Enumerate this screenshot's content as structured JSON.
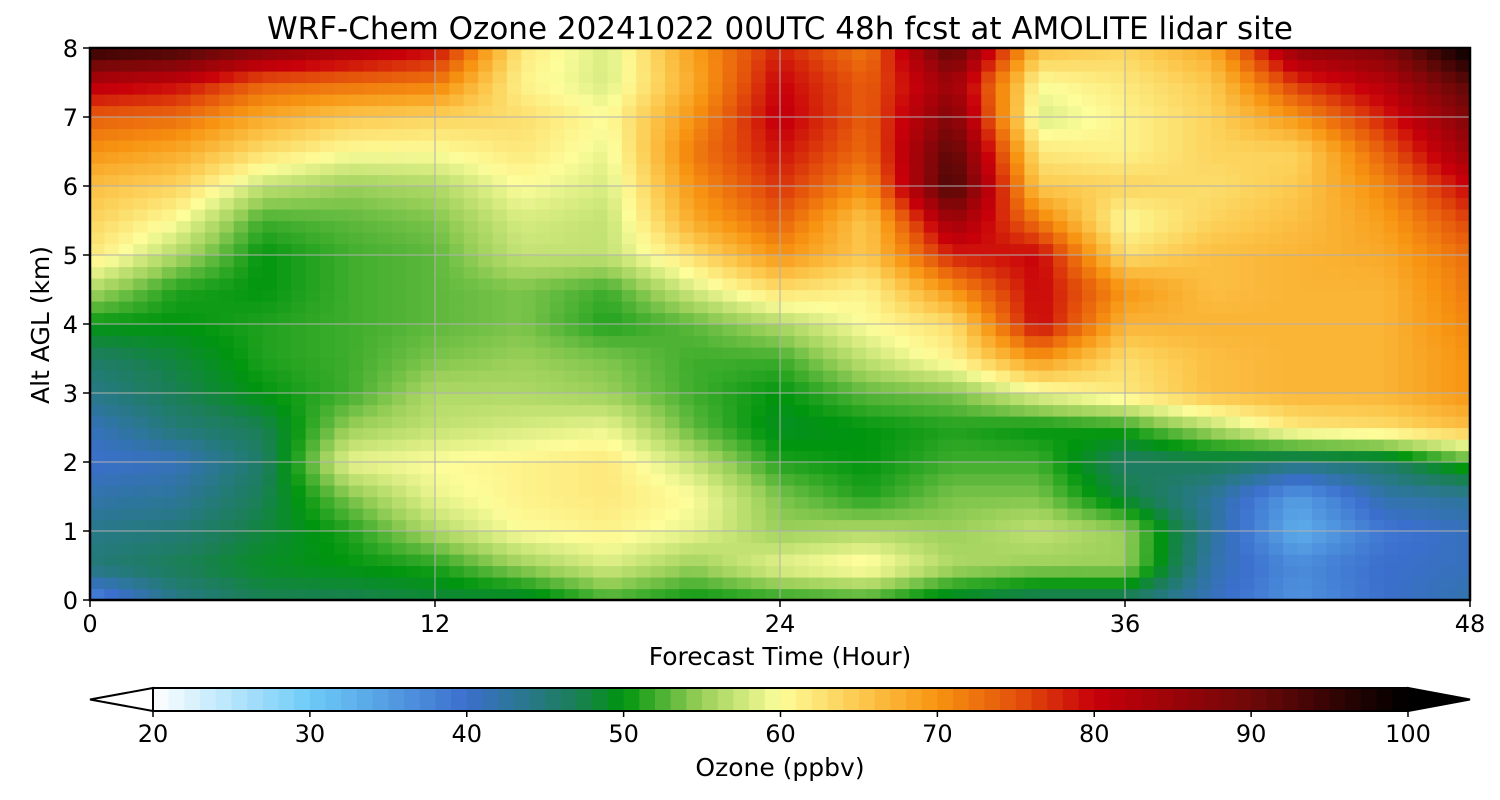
{
  "chart_data": {
    "type": "heatmap",
    "title": "WRF-Chem Ozone  20241022 00UTC 48h fcst at AMOLITE lidar site",
    "xlabel": "Forecast Time (Hour)",
    "ylabel": "Alt AGL (km)",
    "xlim": [
      0,
      48
    ],
    "ylim": [
      0,
      8
    ],
    "x_ticks": [
      "0",
      "12",
      "24",
      "36",
      "48"
    ],
    "y_ticks": [
      "0",
      "1",
      "2",
      "3",
      "4",
      "5",
      "6",
      "7",
      "8"
    ],
    "grid": true,
    "x": [
      0,
      3,
      6,
      9,
      12,
      15,
      18,
      21,
      24,
      27,
      30,
      33,
      36,
      39,
      42,
      45,
      48
    ],
    "y": [
      0,
      0.5,
      1,
      1.5,
      2,
      2.5,
      3,
      3.5,
      4,
      4.5,
      5,
      5.5,
      6,
      6.5,
      7,
      7.5,
      8
    ],
    "z_ppbv": [
      [
        37,
        44,
        47,
        47,
        48,
        48,
        52,
        50,
        51,
        52,
        48,
        46,
        46,
        41,
        36,
        40,
        42
      ],
      [
        45,
        47,
        49,
        50,
        51,
        55,
        58,
        55,
        59,
        61,
        56,
        55,
        55,
        42,
        37,
        40,
        41
      ],
      [
        44,
        45,
        48,
        51,
        56,
        60,
        61,
        59,
        55,
        56,
        55,
        57,
        55,
        43,
        33,
        39,
        41
      ],
      [
        42,
        43,
        47,
        54,
        59,
        61,
        62,
        60,
        54,
        51,
        54,
        54,
        48,
        43,
        35,
        42,
        43
      ],
      [
        40,
        41,
        46,
        59,
        60,
        61,
        62,
        57,
        51,
        50,
        52,
        52,
        46,
        47,
        45,
        46,
        52
      ],
      [
        41,
        45,
        47,
        55,
        57,
        58,
        59,
        53,
        49,
        50,
        51,
        50,
        51,
        56,
        62,
        63,
        66
      ],
      [
        44,
        47,
        50,
        52,
        56,
        56,
        55,
        52,
        50,
        53,
        54,
        59,
        62,
        66,
        67,
        67,
        70
      ],
      [
        46,
        48,
        51,
        52,
        54,
        55,
        54,
        52,
        52,
        57,
        61,
        70,
        63,
        66,
        67,
        67,
        70
      ],
      [
        50,
        50,
        51,
        52,
        53,
        54,
        51,
        53,
        56,
        60,
        63,
        80,
        67,
        67,
        67,
        67,
        71
      ],
      [
        56,
        51,
        50,
        52,
        53,
        54,
        52,
        58,
        63,
        61,
        70,
        80,
        70,
        66,
        67,
        67,
        72
      ],
      [
        62,
        56,
        50,
        52,
        53,
        57,
        57,
        63,
        70,
        65,
        78,
        80,
        63,
        66,
        67,
        68,
        73
      ],
      [
        64,
        60,
        52,
        53,
        54,
        58,
        57,
        68,
        74,
        65,
        85,
        72,
        60,
        64,
        66,
        69,
        76
      ],
      [
        66,
        64,
        57,
        55,
        56,
        60,
        58,
        70,
        77,
        70,
        94,
        65,
        64,
        63,
        65,
        71,
        80
      ],
      [
        70,
        68,
        63,
        60,
        60,
        62,
        59,
        72,
        79,
        73,
        92,
        62,
        61,
        64,
        64,
        74,
        85
      ],
      [
        74,
        73,
        68,
        65,
        64,
        63,
        60,
        70,
        81,
        74,
        88,
        58,
        61,
        64,
        70,
        78,
        88
      ],
      [
        82,
        80,
        74,
        73,
        72,
        61,
        58,
        68,
        80,
        74,
        85,
        60,
        62,
        65,
        77,
        82,
        92
      ],
      [
        96,
        94,
        88,
        84,
        80,
        62,
        58,
        69,
        78,
        72,
        92,
        66,
        64,
        68,
        86,
        88,
        100
      ]
    ],
    "colorbar": {
      "label": "Ozone  (ppbv)",
      "min": 20,
      "max": 100,
      "ticks": [
        "20",
        "30",
        "40",
        "50",
        "60",
        "70",
        "80",
        "90",
        "100"
      ],
      "extend": "both",
      "stops": [
        {
          "value": 20,
          "color": "#ffffff"
        },
        {
          "value": 30,
          "color": "#6ecbf8"
        },
        {
          "value": 40,
          "color": "#3b6fcd"
        },
        {
          "value": 47,
          "color": "#1a7f55"
        },
        {
          "value": 50,
          "color": "#00950e"
        },
        {
          "value": 55,
          "color": "#9bd05a"
        },
        {
          "value": 60,
          "color": "#fdfd9a"
        },
        {
          "value": 65,
          "color": "#fcc94e"
        },
        {
          "value": 70,
          "color": "#f79411"
        },
        {
          "value": 75,
          "color": "#e4520b"
        },
        {
          "value": 80,
          "color": "#c8000a"
        },
        {
          "value": 90,
          "color": "#6d0808"
        },
        {
          "value": 100,
          "color": "#000000"
        }
      ]
    }
  }
}
